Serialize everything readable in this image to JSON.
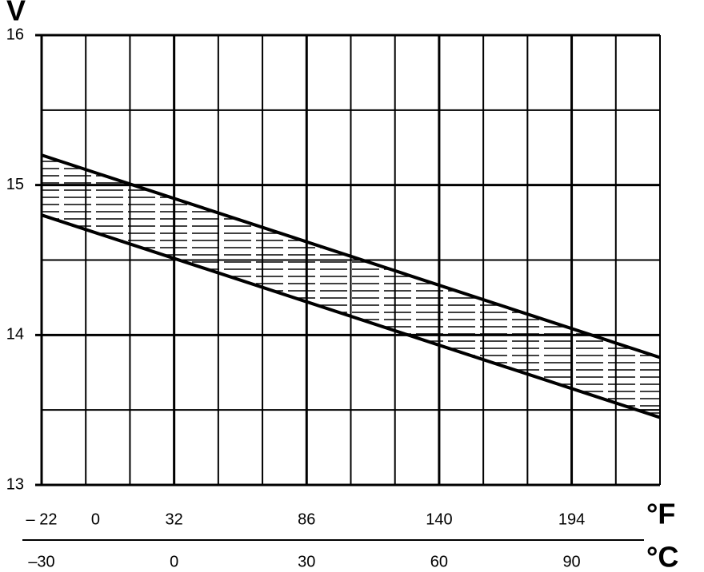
{
  "chart_data": {
    "type": "line",
    "y_label": "V",
    "x_label": "°C",
    "x2_label": "°F",
    "x": [
      -30,
      110
    ],
    "series": [
      {
        "color": "#000000",
        "values": [
          15.2,
          13.85
        ]
      },
      {
        "color": "#000000",
        "values": [
          14.8,
          13.45
        ]
      }
    ],
    "xlim": [
      -30,
      110
    ],
    "xticks": [
      {
        "value": -30,
        "label": "–30"
      },
      0,
      30,
      60,
      90
    ],
    "x_minor_ticks": [
      -20,
      -10,
      10,
      20,
      40,
      50,
      70,
      80,
      100,
      110
    ],
    "x2lim": [
      -22,
      230
    ],
    "x2ticks": [
      {
        "value": -22,
        "label": "– 22"
      },
      0,
      32,
      86,
      140,
      194
    ],
    "ylim": [
      13,
      16
    ],
    "yticks": [
      13,
      14,
      15,
      16
    ],
    "y_minor_ticks": [
      13.5,
      14.5,
      15.5
    ],
    "grid": true
  }
}
